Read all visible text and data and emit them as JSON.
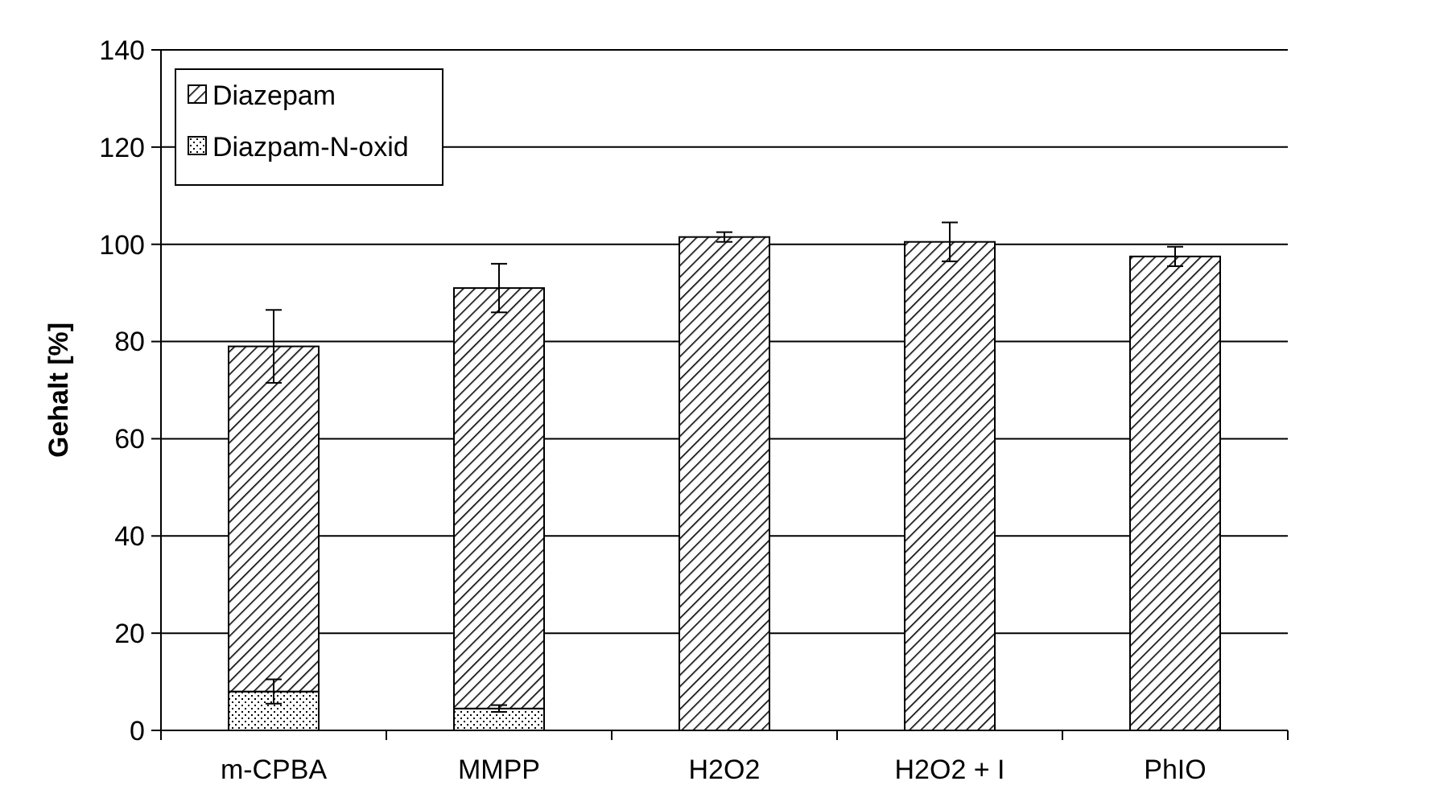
{
  "chart_data": {
    "type": "bar",
    "stacked": true,
    "ylabel": "Gehalt [%]",
    "categories": [
      "m-CPBA",
      "MMPP",
      "H2O2",
      "H2O2 + I",
      "PhIO"
    ],
    "series": [
      {
        "name": "Diazpam-N-oxid",
        "color": "#000000",
        "values": [
          8,
          4.5,
          null,
          null,
          null
        ],
        "errors": [
          2.5,
          0.7,
          null,
          null,
          null
        ]
      },
      {
        "name": "Diazepam",
        "color": "#000000",
        "values": [
          71,
          86.5,
          101.5,
          100.5,
          97.5
        ],
        "errors": [
          7.5,
          5,
          1,
          4,
          2
        ]
      }
    ],
    "ylim": [
      0,
      140
    ],
    "yticks": [
      0,
      20,
      40,
      60,
      80,
      100,
      120,
      140
    ],
    "grid": "y",
    "legend": "top left"
  }
}
